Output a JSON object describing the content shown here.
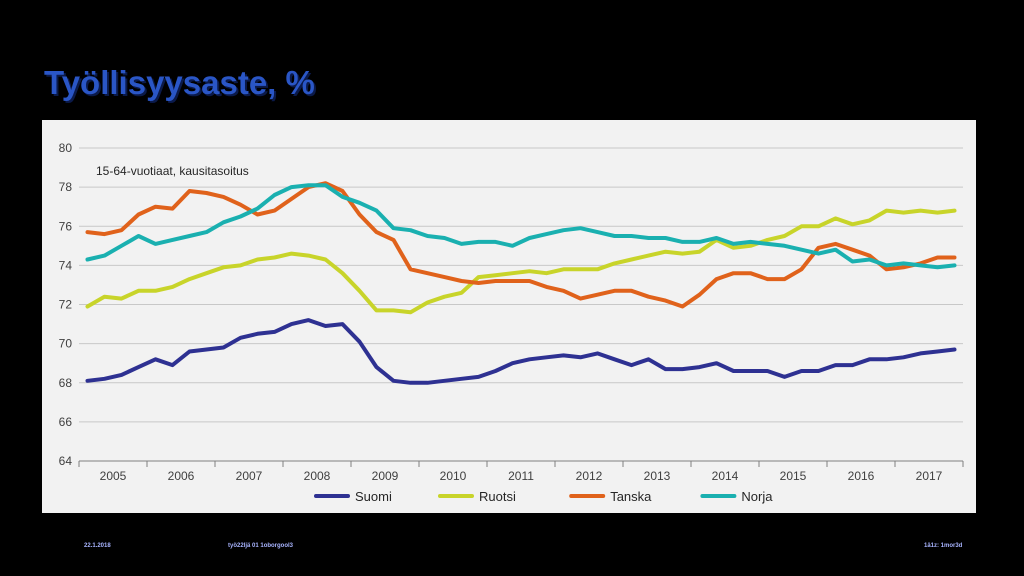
{
  "slide": {
    "title": "Työllisyysaste, %",
    "footer_date": "22.1.2018",
    "footer_center": "työ22ljä 01 1oborgool3",
    "footer_right": "1ä1z: 1mor3d"
  },
  "colors": {
    "background": "#000000",
    "panel": "#f2f2f2",
    "title": "#2a56c6",
    "grid": "#c8c8c8",
    "axis_text": "#404040"
  },
  "chart_data": {
    "type": "line",
    "title": "",
    "subtitle": "15-64-vuotiaat, kausitasoitus",
    "xlabel": "",
    "ylabel": "",
    "ylim": [
      64,
      80
    ],
    "yticks": [
      64,
      66,
      68,
      70,
      72,
      74,
      76,
      78,
      80
    ],
    "xlim": [
      2005.0,
      2018.0
    ],
    "xticks": [
      "2005",
      "2006",
      "2007",
      "2008",
      "2009",
      "2010",
      "2011",
      "2012",
      "2013",
      "2014",
      "2015",
      "2016",
      "2017"
    ],
    "grid": "horizontal",
    "legend_position": "bottom",
    "x": [
      2005.125,
      2005.375,
      2005.625,
      2005.875,
      2006.125,
      2006.375,
      2006.625,
      2006.875,
      2007.125,
      2007.375,
      2007.625,
      2007.875,
      2008.125,
      2008.375,
      2008.625,
      2008.875,
      2009.125,
      2009.375,
      2009.625,
      2009.875,
      2010.125,
      2010.375,
      2010.625,
      2010.875,
      2011.125,
      2011.375,
      2011.625,
      2011.875,
      2012.125,
      2012.375,
      2012.625,
      2012.875,
      2013.125,
      2013.375,
      2013.625,
      2013.875,
      2014.125,
      2014.375,
      2014.625,
      2014.875,
      2015.125,
      2015.375,
      2015.625,
      2015.875,
      2016.125,
      2016.375,
      2016.625,
      2016.875,
      2017.125,
      2017.375,
      2017.625,
      2017.875
    ],
    "series": [
      {
        "name": "Suomi",
        "color": "#2e3192",
        "values": [
          68.1,
          68.2,
          68.4,
          68.8,
          69.2,
          68.9,
          69.6,
          69.7,
          69.8,
          70.3,
          70.5,
          70.6,
          71.0,
          71.2,
          70.9,
          71.0,
          70.1,
          68.8,
          68.1,
          68.0,
          68.0,
          68.1,
          68.2,
          68.3,
          68.6,
          69.0,
          69.2,
          69.3,
          69.4,
          69.3,
          69.5,
          69.2,
          68.9,
          69.2,
          68.7,
          68.7,
          68.8,
          69.0,
          68.6,
          68.6,
          68.6,
          68.3,
          68.6,
          68.6,
          68.9,
          68.9,
          69.2,
          69.2,
          69.3,
          69.5,
          69.6,
          69.7
        ]
      },
      {
        "name": "Ruotsi",
        "color": "#c8d42a",
        "values": [
          71.9,
          72.4,
          72.3,
          72.7,
          72.7,
          72.9,
          73.3,
          73.6,
          73.9,
          74.0,
          74.3,
          74.4,
          74.6,
          74.5,
          74.3,
          73.6,
          72.7,
          71.7,
          71.7,
          71.6,
          72.1,
          72.4,
          72.6,
          73.4,
          73.5,
          73.6,
          73.7,
          73.6,
          73.8,
          73.8,
          73.8,
          74.1,
          74.3,
          74.5,
          74.7,
          74.6,
          74.7,
          75.3,
          74.9,
          75.0,
          75.3,
          75.5,
          76.0,
          76.0,
          76.4,
          76.1,
          76.3,
          76.8,
          76.7,
          76.8,
          76.7,
          76.8
        ]
      },
      {
        "name": "Tanska",
        "color": "#e0621b",
        "values": [
          75.7,
          75.6,
          75.8,
          76.6,
          77.0,
          76.9,
          77.8,
          77.7,
          77.5,
          77.1,
          76.6,
          76.8,
          77.4,
          78.0,
          78.2,
          77.8,
          76.6,
          75.7,
          75.3,
          73.8,
          73.6,
          73.4,
          73.2,
          73.1,
          73.2,
          73.2,
          73.2,
          72.9,
          72.7,
          72.3,
          72.5,
          72.7,
          72.7,
          72.4,
          72.2,
          71.9,
          72.5,
          73.3,
          73.6,
          73.6,
          73.3,
          73.3,
          73.8,
          74.9,
          75.1,
          74.8,
          74.5,
          73.8,
          73.9,
          74.1,
          74.4,
          74.4
        ]
      },
      {
        "name": "Norja",
        "color": "#1ab0b0",
        "values": [
          74.3,
          74.5,
          75.0,
          75.5,
          75.1,
          75.3,
          75.5,
          75.7,
          76.2,
          76.5,
          76.9,
          77.6,
          78.0,
          78.1,
          78.1,
          77.5,
          77.2,
          76.8,
          75.9,
          75.8,
          75.5,
          75.4,
          75.1,
          75.2,
          75.2,
          75.0,
          75.4,
          75.6,
          75.8,
          75.9,
          75.7,
          75.5,
          75.5,
          75.4,
          75.4,
          75.2,
          75.2,
          75.4,
          75.1,
          75.2,
          75.1,
          75.0,
          74.8,
          74.6,
          74.8,
          74.2,
          74.3,
          74.0,
          74.1,
          74.0,
          73.9,
          74.0
        ]
      }
    ]
  }
}
